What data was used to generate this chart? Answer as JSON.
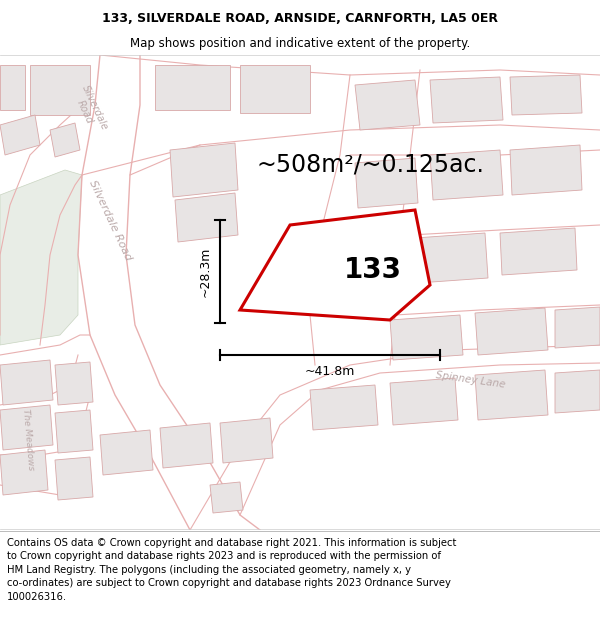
{
  "title_line1": "133, SILVERDALE ROAD, ARNSIDE, CARNFORTH, LA5 0ER",
  "title_line2": "Map shows position and indicative extent of the property.",
  "area_text": "~508m²/~0.125ac.",
  "property_number": "133",
  "dim_vertical": "~28.3m",
  "dim_horizontal": "~41.8m",
  "copyright_text": "Contains OS data © Crown copyright and database right 2021. This information is subject\nto Crown copyright and database rights 2023 and is reproduced with the permission of\nHM Land Registry. The polygons (including the associated geometry, namely x, y\nco-ordinates) are subject to Crown copyright and database rights 2023 Ordnance Survey\n100026316.",
  "map_bg": "#f8f6f6",
  "road_outline": "#e8b0b0",
  "road_fill": "#ffffff",
  "building_fill": "#e8e4e4",
  "building_edge": "#d8a8a8",
  "property_fill": "#ffffff",
  "property_edge": "#cc0000",
  "green_fill": "#e8ede6",
  "label_color": "#bbaaaa",
  "title_fontsize": 9,
  "subtitle_fontsize": 8.5,
  "area_fontsize": 17,
  "number_fontsize": 20,
  "dim_fontsize": 9,
  "road_label_fontsize": 7.5,
  "copyright_fontsize": 7.2
}
